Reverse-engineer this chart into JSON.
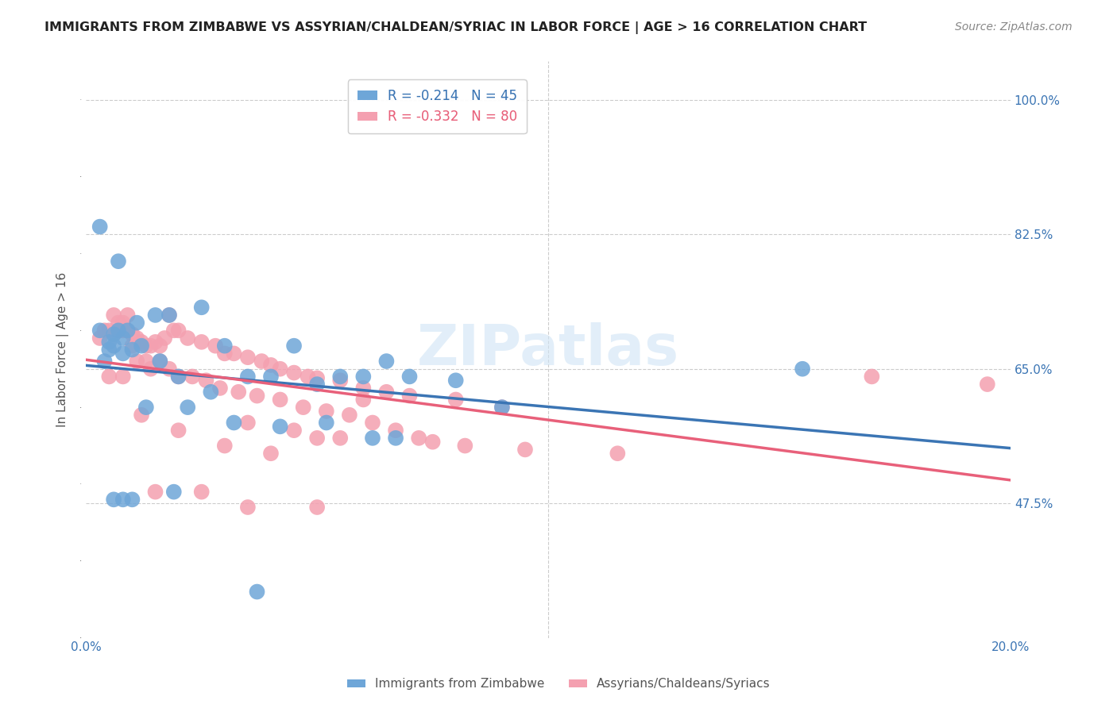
{
  "title": "IMMIGRANTS FROM ZIMBABWE VS ASSYRIAN/CHALDEAN/SYRIAC IN LABOR FORCE | AGE > 16 CORRELATION CHART",
  "source": "Source: ZipAtlas.com",
  "ylabel": "In Labor Force | Age > 16",
  "x_min": 0.0,
  "x_max": 0.2,
  "y_min": 0.3,
  "y_max": 1.05,
  "x_ticks": [
    0.0,
    0.025,
    0.05,
    0.075,
    0.1,
    0.125,
    0.15,
    0.175,
    0.2
  ],
  "x_tick_labels": [
    "0.0%",
    "",
    "",
    "",
    "",
    "",
    "",
    "",
    "20.0%"
  ],
  "y_ticks": [
    0.475,
    0.65,
    0.825,
    1.0
  ],
  "y_tick_labels": [
    "47.5%",
    "65.0%",
    "82.5%",
    "100.0%"
  ],
  "blue_color": "#6ea6d8",
  "pink_color": "#f4a0b0",
  "blue_line_color": "#3b75b4",
  "pink_line_color": "#e8607a",
  "blue_R": -0.214,
  "blue_N": 45,
  "pink_R": -0.332,
  "pink_N": 80,
  "legend_label_blue": "Immigrants from Zimbabwe",
  "legend_label_pink": "Assyrians/Chaldeans/Syriacs",
  "watermark": "ZIPatlas",
  "blue_scatter_x": [
    0.005,
    0.008,
    0.003,
    0.006,
    0.007,
    0.009,
    0.004,
    0.005,
    0.006,
    0.008,
    0.01,
    0.012,
    0.011,
    0.015,
    0.018,
    0.02,
    0.025,
    0.03,
    0.035,
    0.04,
    0.045,
    0.05,
    0.055,
    0.06,
    0.065,
    0.07,
    0.08,
    0.09,
    0.003,
    0.007,
    0.006,
    0.008,
    0.01,
    0.013,
    0.016,
    0.019,
    0.022,
    0.027,
    0.032,
    0.037,
    0.042,
    0.052,
    0.062,
    0.155,
    0.067
  ],
  "blue_scatter_y": [
    0.685,
    0.69,
    0.7,
    0.695,
    0.7,
    0.7,
    0.66,
    0.675,
    0.68,
    0.67,
    0.675,
    0.68,
    0.71,
    0.72,
    0.72,
    0.64,
    0.73,
    0.68,
    0.64,
    0.64,
    0.68,
    0.63,
    0.64,
    0.64,
    0.66,
    0.64,
    0.635,
    0.6,
    0.835,
    0.79,
    0.48,
    0.48,
    0.48,
    0.6,
    0.66,
    0.49,
    0.6,
    0.62,
    0.58,
    0.36,
    0.575,
    0.58,
    0.56,
    0.65,
    0.56
  ],
  "pink_scatter_x": [
    0.004,
    0.006,
    0.005,
    0.007,
    0.008,
    0.009,
    0.01,
    0.011,
    0.012,
    0.013,
    0.014,
    0.015,
    0.016,
    0.017,
    0.018,
    0.019,
    0.02,
    0.022,
    0.025,
    0.028,
    0.03,
    0.032,
    0.035,
    0.038,
    0.04,
    0.042,
    0.045,
    0.048,
    0.05,
    0.055,
    0.06,
    0.065,
    0.07,
    0.08,
    0.09,
    0.003,
    0.006,
    0.007,
    0.008,
    0.009,
    0.01,
    0.011,
    0.013,
    0.014,
    0.016,
    0.018,
    0.02,
    0.023,
    0.026,
    0.029,
    0.033,
    0.037,
    0.042,
    0.047,
    0.052,
    0.057,
    0.062,
    0.067,
    0.072,
    0.082,
    0.005,
    0.008,
    0.012,
    0.02,
    0.03,
    0.04,
    0.05,
    0.06,
    0.035,
    0.045,
    0.055,
    0.075,
    0.095,
    0.115,
    0.17,
    0.195,
    0.015,
    0.025,
    0.035,
    0.05
  ],
  "pink_scatter_y": [
    0.7,
    0.695,
    0.7,
    0.7,
    0.7,
    0.7,
    0.695,
    0.69,
    0.685,
    0.68,
    0.68,
    0.685,
    0.68,
    0.69,
    0.72,
    0.7,
    0.7,
    0.69,
    0.685,
    0.68,
    0.67,
    0.67,
    0.665,
    0.66,
    0.655,
    0.65,
    0.645,
    0.64,
    0.638,
    0.635,
    0.625,
    0.62,
    0.615,
    0.61,
    0.6,
    0.69,
    0.72,
    0.71,
    0.71,
    0.72,
    0.68,
    0.66,
    0.66,
    0.65,
    0.66,
    0.65,
    0.64,
    0.64,
    0.635,
    0.625,
    0.62,
    0.615,
    0.61,
    0.6,
    0.595,
    0.59,
    0.58,
    0.57,
    0.56,
    0.55,
    0.64,
    0.64,
    0.59,
    0.57,
    0.55,
    0.54,
    0.56,
    0.61,
    0.58,
    0.57,
    0.56,
    0.555,
    0.545,
    0.54,
    0.64,
    0.63,
    0.49,
    0.49,
    0.47,
    0.47
  ]
}
